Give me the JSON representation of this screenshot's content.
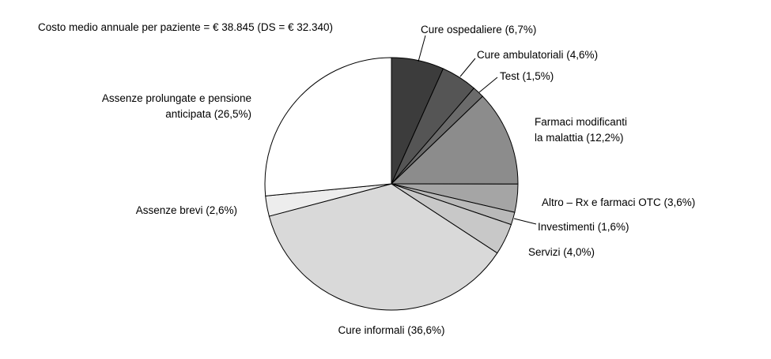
{
  "chart_data": {
    "type": "pie",
    "title": "Costo medio annuale per paziente = € 38.845 (DS = € 32.340)",
    "start_angle_deg": 0,
    "direction": "clockwise",
    "stroke_color": "#000000",
    "slices": [
      {
        "id": "cure-ospedaliere",
        "name": "Cure ospedaliere",
        "value_pct": 6.7,
        "label": "Cure ospedaliere (6,7%)",
        "color": "#3c3c3c"
      },
      {
        "id": "cure-ambulatoriali",
        "name": "Cure ambulatoriali",
        "value_pct": 4.6,
        "label": "Cure ambulatoriali (4,6%)",
        "color": "#555555"
      },
      {
        "id": "test",
        "name": "Test",
        "value_pct": 1.5,
        "label": "Test (1,5%)",
        "color": "#6b6b6b"
      },
      {
        "id": "farmaci-modificanti",
        "name": "Farmaci modificanti la malattia",
        "value_pct": 12.2,
        "label": "Farmaci modificanti\nla malattia (12,2%)",
        "color": "#8c8c8c"
      },
      {
        "id": "altro-rx-otc",
        "name": "Altro – Rx e farmaci OTC",
        "value_pct": 3.6,
        "label": "Altro – Rx e farmaci OTC (3,6%)",
        "color": "#a5a5a5"
      },
      {
        "id": "investimenti",
        "name": "Investimenti",
        "value_pct": 1.6,
        "label": "Investimenti (1,6%)",
        "color": "#b9b9b9"
      },
      {
        "id": "servizi",
        "name": "Servizi",
        "value_pct": 4.0,
        "label": "Servizi (4,0%)",
        "color": "#c8c8c8"
      },
      {
        "id": "cure-informali",
        "name": "Cure informali",
        "value_pct": 36.6,
        "label": "Cure informali (36,6%)",
        "color": "#d9d9d9"
      },
      {
        "id": "assenze-brevi",
        "name": "Assenze brevi",
        "value_pct": 2.6,
        "label": "Assenze brevi (2,6%)",
        "color": "#ededed"
      },
      {
        "id": "assenze-prolungate",
        "name": "Assenze prolungate e pensione anticipata",
        "value_pct": 26.5,
        "label": "Assenze prolungate e pensione\nanticipata (26,5%)",
        "color": "#ffffff"
      }
    ]
  }
}
